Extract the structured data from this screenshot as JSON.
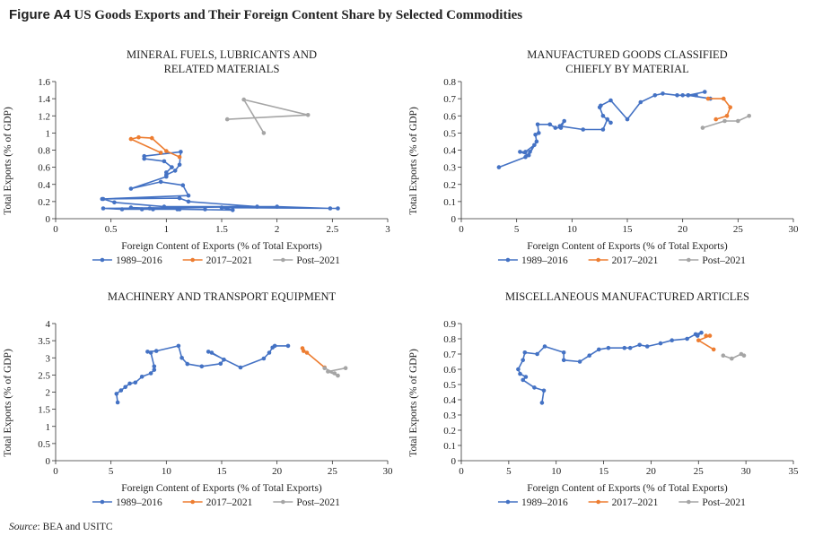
{
  "figure": {
    "label": "Figure A4",
    "title": "US Goods Exports and Their Foreign Content Share by Selected Commodities"
  },
  "source": {
    "label": "Source",
    "text": ": BEA and USITC"
  },
  "colors": {
    "s1989": "#4472C4",
    "s2017": "#ED7D31",
    "post": "#A5A5A5"
  },
  "chart_data": [
    {
      "type": "line",
      "title": [
        "MINERAL FUELS, LUBRICANTS AND",
        "RELATED MATERIALS"
      ],
      "xlabel": "Foreign Content of Exports (% of Total Exports)",
      "ylabel": "Total Exports (% of GDP)",
      "xlim": [
        0,
        3
      ],
      "ylim": [
        0,
        1.6
      ],
      "xticks": [
        0,
        0.5,
        1,
        1.5,
        2,
        2.5,
        3
      ],
      "xtick_labels": [
        "0",
        "0.5",
        "1",
        "1.5",
        "2",
        "2.5",
        "3"
      ],
      "yticks": [
        0,
        0.2,
        0.4,
        0.6,
        0.8,
        1,
        1.2,
        1.4,
        1.6
      ],
      "ytick_labels": [
        "0",
        "0.2",
        "0.4",
        "0.6",
        "0.8",
        "1",
        "1.2",
        "1.4",
        "1.6"
      ],
      "legend_position": "bottom",
      "series": [
        {
          "name": "1989–2016",
          "color": "#4472C4",
          "points": [
            [
              0.43,
              0.23
            ],
            [
              0.53,
              0.19
            ],
            [
              0.98,
              0.14
            ],
            [
              2.0,
              0.14
            ],
            [
              2.48,
              0.12
            ],
            [
              2.55,
              0.12
            ],
            [
              1.5,
              0.13
            ],
            [
              1.6,
              0.1
            ],
            [
              1.12,
              0.11
            ],
            [
              1.35,
              0.11
            ],
            [
              0.85,
              0.12
            ],
            [
              0.68,
              0.13
            ],
            [
              0.78,
              0.11
            ],
            [
              0.88,
              0.11
            ],
            [
              1.1,
              0.11
            ],
            [
              0.6,
              0.11
            ],
            [
              0.43,
              0.12
            ],
            [
              1.82,
              0.14
            ],
            [
              1.2,
              0.2
            ],
            [
              1.12,
              0.24
            ],
            [
              0.42,
              0.23
            ],
            [
              1.2,
              0.27
            ],
            [
              1.15,
              0.39
            ],
            [
              0.95,
              0.43
            ],
            [
              0.68,
              0.35
            ],
            [
              1.0,
              0.49
            ],
            [
              1.0,
              0.54
            ],
            [
              1.05,
              0.6
            ],
            [
              0.98,
              0.67
            ],
            [
              0.8,
              0.7
            ],
            [
              0.8,
              0.73
            ],
            [
              1.13,
              0.78
            ],
            [
              1.12,
              0.63
            ],
            [
              1.08,
              0.56
            ],
            [
              1.0,
              0.51
            ]
          ]
        },
        {
          "name": "2017–2021",
          "color": "#ED7D31",
          "points": [
            [
              1.12,
              0.72
            ],
            [
              1.0,
              0.79
            ],
            [
              0.87,
              0.94
            ],
            [
              0.75,
              0.95
            ],
            [
              0.68,
              0.93
            ],
            [
              0.95,
              0.77
            ]
          ]
        },
        {
          "name": "Post–2021",
          "color": "#A5A5A5",
          "points": [
            [
              1.88,
              1.0
            ],
            [
              1.7,
              1.39
            ],
            [
              2.28,
              1.21
            ],
            [
              1.55,
              1.16
            ]
          ]
        }
      ]
    },
    {
      "type": "line",
      "title": [
        "MANUFACTURED GOODS CLASSIFIED",
        "CHIEFLY BY MATERIAL"
      ],
      "xlabel": "Foreign Content of Exports (% of Total Exports)",
      "ylabel": "Total Exports (% of GDP)",
      "xlim": [
        0,
        30
      ],
      "ylim": [
        0,
        0.8
      ],
      "xticks": [
        0,
        5,
        10,
        15,
        20,
        25,
        30
      ],
      "xtick_labels": [
        "0",
        "5",
        "10",
        "15",
        "20",
        "25",
        "30"
      ],
      "yticks": [
        0,
        0.1,
        0.2,
        0.3,
        0.4,
        0.5,
        0.6,
        0.7,
        0.8
      ],
      "ytick_labels": [
        "0",
        "0.1",
        "0.2",
        "0.3",
        "0.4",
        "0.5",
        "0.6",
        "0.7",
        "0.8"
      ],
      "legend_position": "bottom",
      "series": [
        {
          "name": "1989–2016",
          "color": "#4472C4",
          "points": [
            [
              3.4,
              0.3
            ],
            [
              5.8,
              0.36
            ],
            [
              6.2,
              0.39
            ],
            [
              6.6,
              0.43
            ],
            [
              5.8,
              0.39
            ],
            [
              5.3,
              0.39
            ],
            [
              6.1,
              0.37
            ],
            [
              6.8,
              0.45
            ],
            [
              6.7,
              0.49
            ],
            [
              7.0,
              0.5
            ],
            [
              6.9,
              0.55
            ],
            [
              8.0,
              0.55
            ],
            [
              8.5,
              0.53
            ],
            [
              9.0,
              0.53
            ],
            [
              9.3,
              0.57
            ],
            [
              8.9,
              0.54
            ],
            [
              11.0,
              0.52
            ],
            [
              12.8,
              0.52
            ],
            [
              13.2,
              0.58
            ],
            [
              13.5,
              0.56
            ],
            [
              12.8,
              0.6
            ],
            [
              12.5,
              0.65
            ],
            [
              12.6,
              0.66
            ],
            [
              13.5,
              0.69
            ],
            [
              15.0,
              0.58
            ],
            [
              16.2,
              0.68
            ],
            [
              17.5,
              0.72
            ],
            [
              18.2,
              0.73
            ],
            [
              19.5,
              0.72
            ],
            [
              21.2,
              0.72
            ],
            [
              20.0,
              0.72
            ],
            [
              20.5,
              0.72
            ],
            [
              22.0,
              0.74
            ],
            [
              20.5,
              0.72
            ],
            [
              22.5,
              0.7
            ]
          ]
        },
        {
          "name": "2017–2021",
          "color": "#ED7D31",
          "points": [
            [
              23.0,
              0.58
            ],
            [
              24.0,
              0.6
            ],
            [
              24.3,
              0.65
            ],
            [
              23.7,
              0.7
            ],
            [
              22.3,
              0.7
            ]
          ]
        },
        {
          "name": "Post–2021",
          "color": "#A5A5A5",
          "points": [
            [
              21.8,
              0.53
            ],
            [
              23.8,
              0.57
            ],
            [
              25.0,
              0.57
            ],
            [
              26.0,
              0.6
            ]
          ]
        }
      ]
    },
    {
      "type": "line",
      "title": [
        "MACHINERY AND TRANSPORT EQUIPMENT"
      ],
      "xlabel": "Foreign Content of Exports (% of Total Exports)",
      "ylabel": "Total Exports (% of GDP)",
      "xlim": [
        0,
        30
      ],
      "ylim": [
        0,
        4
      ],
      "xticks": [
        0,
        5,
        10,
        15,
        20,
        25,
        30
      ],
      "xtick_labels": [
        "0",
        "5",
        "10",
        "15",
        "20",
        "25",
        "30"
      ],
      "yticks": [
        0,
        0.5,
        1,
        1.5,
        2,
        2.5,
        3,
        3.5,
        4
      ],
      "ytick_labels": [
        "0",
        "0.5",
        "1",
        "1.5",
        "2",
        "2.5",
        "3",
        "3.5",
        "4"
      ],
      "legend_position": "bottom",
      "series": [
        {
          "name": "1989–2016",
          "color": "#4472C4",
          "points": [
            [
              5.6,
              1.7
            ],
            [
              5.5,
              1.95
            ],
            [
              5.9,
              2.05
            ],
            [
              6.3,
              2.15
            ],
            [
              6.7,
              2.25
            ],
            [
              7.2,
              2.28
            ],
            [
              7.8,
              2.45
            ],
            [
              8.6,
              2.55
            ],
            [
              8.9,
              2.65
            ],
            [
              8.9,
              2.75
            ],
            [
              8.6,
              3.15
            ],
            [
              8.3,
              3.18
            ],
            [
              9.1,
              3.2
            ],
            [
              11.1,
              3.35
            ],
            [
              11.4,
              3.0
            ],
            [
              11.9,
              2.82
            ],
            [
              13.2,
              2.75
            ],
            [
              14.9,
              2.83
            ],
            [
              15.2,
              2.95
            ],
            [
              14.1,
              3.15
            ],
            [
              13.8,
              3.18
            ],
            [
              16.7,
              2.72
            ],
            [
              18.8,
              2.98
            ],
            [
              19.3,
              3.15
            ],
            [
              19.6,
              3.3
            ],
            [
              19.8,
              3.35
            ],
            [
              21.0,
              3.35
            ]
          ]
        },
        {
          "name": "2017–2021",
          "color": "#ED7D31",
          "points": [
            [
              22.3,
              3.28
            ],
            [
              22.4,
              3.2
            ],
            [
              22.7,
              3.15
            ],
            [
              24.3,
              2.72
            ]
          ]
        },
        {
          "name": "Post–2021",
          "color": "#A5A5A5",
          "points": [
            [
              24.3,
              2.7
            ],
            [
              25.2,
              2.55
            ],
            [
              25.5,
              2.48
            ],
            [
              24.6,
              2.6
            ],
            [
              26.2,
              2.7
            ]
          ]
        }
      ]
    },
    {
      "type": "line",
      "title": [
        "MISCELLANEOUS MANUFACTURED ARTICLES"
      ],
      "xlabel": "Foreign Content of Exports (% of Total Exports)",
      "ylabel": "Total Exports (% of GDP)",
      "xlim": [
        0,
        35
      ],
      "ylim": [
        0,
        0.9
      ],
      "xticks": [
        0,
        5,
        10,
        15,
        20,
        25,
        30,
        35
      ],
      "xtick_labels": [
        "0",
        "5",
        "10",
        "15",
        "20",
        "25",
        "30",
        "35"
      ],
      "yticks": [
        0,
        0.1,
        0.2,
        0.3,
        0.4,
        0.5,
        0.6,
        0.7,
        0.8,
        0.9
      ],
      "ytick_labels": [
        "0",
        "0.1",
        "0.2",
        "0.3",
        "0.4",
        "0.5",
        "0.6",
        "0.7",
        "0.8",
        "0.9"
      ],
      "legend_position": "bottom",
      "series": [
        {
          "name": "1989–2016",
          "color": "#4472C4",
          "points": [
            [
              8.5,
              0.38
            ],
            [
              8.7,
              0.46
            ],
            [
              7.7,
              0.48
            ],
            [
              6.5,
              0.53
            ],
            [
              6.8,
              0.55
            ],
            [
              6.2,
              0.57
            ],
            [
              6.0,
              0.6
            ],
            [
              6.5,
              0.66
            ],
            [
              6.7,
              0.71
            ],
            [
              8.0,
              0.7
            ],
            [
              8.8,
              0.75
            ],
            [
              10.8,
              0.71
            ],
            [
              10.8,
              0.66
            ],
            [
              12.5,
              0.65
            ],
            [
              13.5,
              0.69
            ],
            [
              14.5,
              0.73
            ],
            [
              15.5,
              0.74
            ],
            [
              17.2,
              0.74
            ],
            [
              17.8,
              0.74
            ],
            [
              18.8,
              0.76
            ],
            [
              19.6,
              0.75
            ],
            [
              21.0,
              0.77
            ],
            [
              22.2,
              0.79
            ],
            [
              23.8,
              0.8
            ],
            [
              24.7,
              0.83
            ],
            [
              25.3,
              0.84
            ],
            [
              24.9,
              0.82
            ]
          ]
        },
        {
          "name": "2017–2021",
          "color": "#ED7D31",
          "points": [
            [
              25.8,
              0.82
            ],
            [
              26.2,
              0.82
            ],
            [
              25.0,
              0.79
            ],
            [
              26.6,
              0.73
            ]
          ]
        },
        {
          "name": "Post–2021",
          "color": "#A5A5A5",
          "points": [
            [
              27.6,
              0.69
            ],
            [
              28.5,
              0.67
            ],
            [
              29.5,
              0.7
            ],
            [
              29.8,
              0.69
            ]
          ]
        }
      ]
    }
  ]
}
